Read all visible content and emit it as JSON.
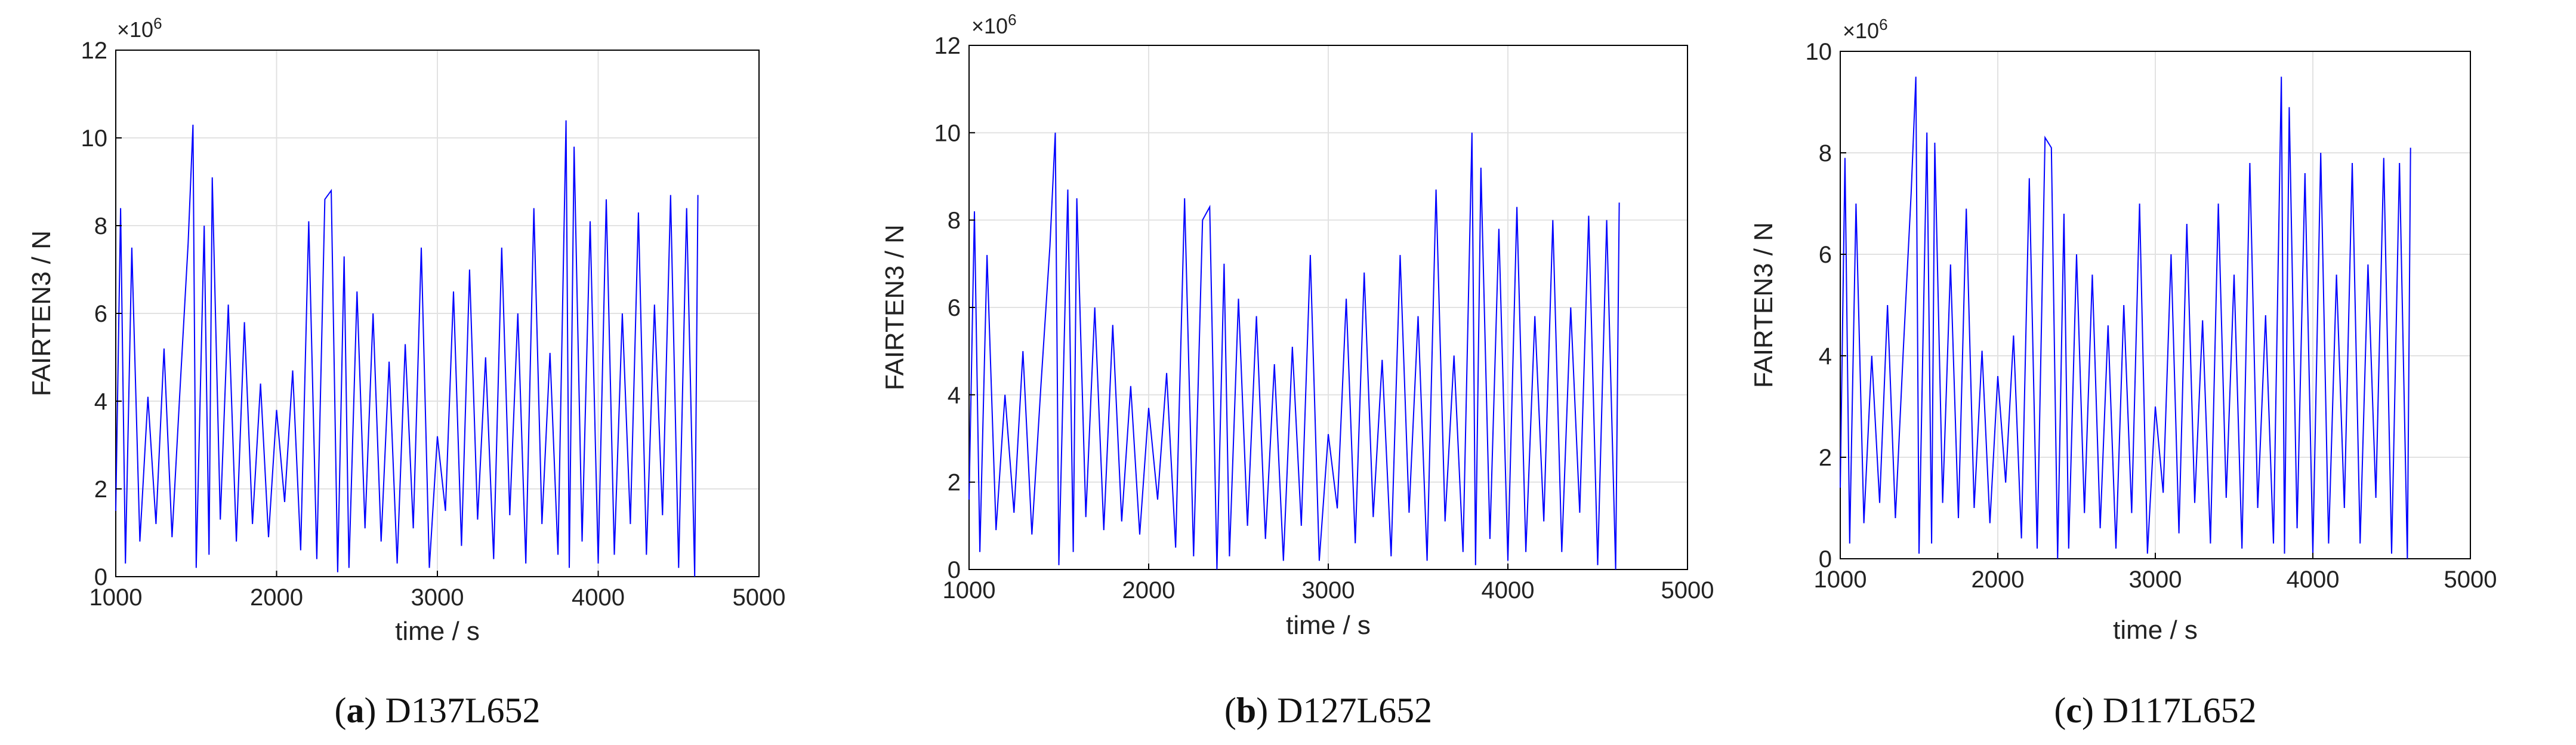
{
  "chart_data": [
    {
      "type": "line",
      "panel_label": "a",
      "caption": "D137L652",
      "xlabel": "time / s",
      "ylabel": "FAIRTEN3 / N",
      "y_exponent_base": "×10",
      "y_exponent_power": "6",
      "xlim": [
        1000,
        5000
      ],
      "ylim": [
        0,
        12
      ],
      "xticks": [
        1000,
        2000,
        3000,
        4000,
        5000
      ],
      "yticks": [
        0,
        2,
        4,
        6,
        8,
        10,
        12
      ],
      "grid": true,
      "line_color": "#0000ff",
      "series": [
        {
          "x": [
            1000,
            1030,
            1060,
            1100,
            1150,
            1200,
            1250,
            1300,
            1350,
            1400,
            1450,
            1480,
            1500,
            1550,
            1580,
            1600,
            1650,
            1700,
            1750,
            1800,
            1850,
            1900,
            1950,
            2000,
            2050,
            2100,
            2150,
            2200,
            2250,
            2300,
            2340,
            2380,
            2420,
            2450,
            2500,
            2550,
            2600,
            2650,
            2700,
            2750,
            2800,
            2850,
            2900,
            2950,
            3000,
            3050,
            3100,
            3150,
            3200,
            3250,
            3300,
            3350,
            3400,
            3450,
            3500,
            3550,
            3600,
            3650,
            3700,
            3750,
            3800,
            3820,
            3850,
            3900,
            3950,
            4000,
            4050,
            4100,
            4150,
            4200,
            4250,
            4300,
            4350,
            4400,
            4450,
            4500,
            4550,
            4600,
            4620
          ],
          "y": [
            1.5,
            8.4,
            0.3,
            7.5,
            0.8,
            4.1,
            1.2,
            5.2,
            0.9,
            4.3,
            7.6,
            10.3,
            0.2,
            8.0,
            0.5,
            9.1,
            1.3,
            6.2,
            0.8,
            5.8,
            1.2,
            4.4,
            0.9,
            3.8,
            1.7,
            4.7,
            0.6,
            8.1,
            0.4,
            8.6,
            8.8,
            0.1,
            7.3,
            0.2,
            6.5,
            1.1,
            6.0,
            0.8,
            4.9,
            0.3,
            5.3,
            1.1,
            7.5,
            0.2,
            3.2,
            1.5,
            6.5,
            0.7,
            7.0,
            1.3,
            5.0,
            0.4,
            7.5,
            1.4,
            6.0,
            0.3,
            8.4,
            1.2,
            5.1,
            0.5,
            10.4,
            0.2,
            9.8,
            0.8,
            8.1,
            0.3,
            8.6,
            0.5,
            6.0,
            1.2,
            8.3,
            0.5,
            6.2,
            1.4,
            8.7,
            0.2,
            8.4,
            0.0,
            8.7
          ]
        }
      ]
    },
    {
      "type": "line",
      "panel_label": "b",
      "caption": "D127L652",
      "xlabel": "time / s",
      "ylabel": "FAIRTEN3 / N",
      "y_exponent_base": "×10",
      "y_exponent_power": "6",
      "xlim": [
        1000,
        5000
      ],
      "ylim": [
        0,
        12
      ],
      "xticks": [
        1000,
        2000,
        3000,
        4000,
        5000
      ],
      "yticks": [
        0,
        2,
        4,
        6,
        8,
        10,
        12
      ],
      "grid": true,
      "line_color": "#0000ff",
      "series": [
        {
          "x": [
            1000,
            1030,
            1060,
            1100,
            1150,
            1200,
            1250,
            1300,
            1350,
            1400,
            1450,
            1480,
            1500,
            1550,
            1580,
            1600,
            1650,
            1700,
            1750,
            1800,
            1850,
            1900,
            1950,
            2000,
            2050,
            2100,
            2150,
            2200,
            2250,
            2300,
            2340,
            2380,
            2420,
            2450,
            2500,
            2550,
            2600,
            2650,
            2700,
            2750,
            2800,
            2850,
            2900,
            2950,
            3000,
            3050,
            3100,
            3150,
            3200,
            3250,
            3300,
            3350,
            3400,
            3450,
            3500,
            3550,
            3600,
            3650,
            3700,
            3750,
            3800,
            3820,
            3850,
            3900,
            3950,
            4000,
            4050,
            4100,
            4150,
            4200,
            4250,
            4300,
            4350,
            4400,
            4450,
            4500,
            4550,
            4600,
            4620
          ],
          "y": [
            1.6,
            8.2,
            0.4,
            7.2,
            0.9,
            4.0,
            1.3,
            5.0,
            0.8,
            4.2,
            7.4,
            10.0,
            0.1,
            8.7,
            0.4,
            8.5,
            1.2,
            6.0,
            0.9,
            5.6,
            1.1,
            4.2,
            0.8,
            3.7,
            1.6,
            4.5,
            0.5,
            8.5,
            0.3,
            8.0,
            8.3,
            0.0,
            7.0,
            0.3,
            6.2,
            1.0,
            5.8,
            0.7,
            4.7,
            0.2,
            5.1,
            1.0,
            7.2,
            0.2,
            3.1,
            1.4,
            6.2,
            0.6,
            6.8,
            1.2,
            4.8,
            0.3,
            7.2,
            1.3,
            5.8,
            0.2,
            8.7,
            1.1,
            4.9,
            0.4,
            10.0,
            0.1,
            9.2,
            0.7,
            7.8,
            0.2,
            8.3,
            0.4,
            5.8,
            1.1,
            8.0,
            0.4,
            6.0,
            1.3,
            8.1,
            0.1,
            8.0,
            0.0,
            8.4
          ]
        }
      ]
    },
    {
      "type": "line",
      "panel_label": "c",
      "caption": "D117L652",
      "xlabel": "time / s",
      "ylabel": "FAIRTEN3 / N",
      "y_exponent_base": "×10",
      "y_exponent_power": "6",
      "xlim": [
        1000,
        5000
      ],
      "ylim": [
        0,
        10
      ],
      "xticks": [
        1000,
        2000,
        3000,
        4000,
        5000
      ],
      "yticks": [
        0,
        2,
        4,
        6,
        8,
        10
      ],
      "grid": true,
      "line_color": "#0000ff",
      "series": [
        {
          "x": [
            1000,
            1030,
            1060,
            1100,
            1150,
            1200,
            1250,
            1300,
            1350,
            1400,
            1450,
            1480,
            1500,
            1550,
            1580,
            1600,
            1650,
            1700,
            1750,
            1800,
            1850,
            1900,
            1950,
            2000,
            2050,
            2100,
            2150,
            2200,
            2250,
            2300,
            2340,
            2380,
            2420,
            2450,
            2500,
            2550,
            2600,
            2650,
            2700,
            2750,
            2800,
            2850,
            2900,
            2950,
            3000,
            3050,
            3100,
            3150,
            3200,
            3250,
            3300,
            3350,
            3400,
            3450,
            3500,
            3550,
            3600,
            3650,
            3700,
            3750,
            3800,
            3820,
            3850,
            3900,
            3950,
            4000,
            4050,
            4100,
            4150,
            4200,
            4250,
            4300,
            4350,
            4400,
            4450,
            4500,
            4550,
            4600,
            4620
          ],
          "y": [
            1.4,
            7.9,
            0.3,
            7.0,
            0.7,
            4.0,
            1.1,
            5.0,
            0.8,
            4.1,
            7.2,
            9.5,
            0.1,
            8.4,
            0.3,
            8.2,
            1.1,
            5.8,
            0.8,
            6.9,
            1.0,
            4.1,
            0.7,
            3.6,
            1.5,
            4.4,
            0.4,
            7.5,
            0.2,
            8.3,
            8.1,
            0.0,
            6.8,
            0.2,
            6.0,
            0.9,
            5.6,
            0.6,
            4.6,
            0.2,
            5.0,
            0.9,
            7.0,
            0.1,
            3.0,
            1.3,
            6.0,
            0.5,
            6.6,
            1.1,
            4.7,
            0.3,
            7.0,
            1.2,
            5.6,
            0.2,
            7.8,
            1.0,
            4.8,
            0.3,
            9.5,
            0.1,
            8.9,
            0.6,
            7.6,
            0.1,
            8.0,
            0.3,
            5.6,
            1.0,
            7.8,
            0.3,
            5.8,
            1.2,
            7.9,
            0.1,
            7.8,
            0.0,
            8.1
          ]
        }
      ]
    }
  ]
}
